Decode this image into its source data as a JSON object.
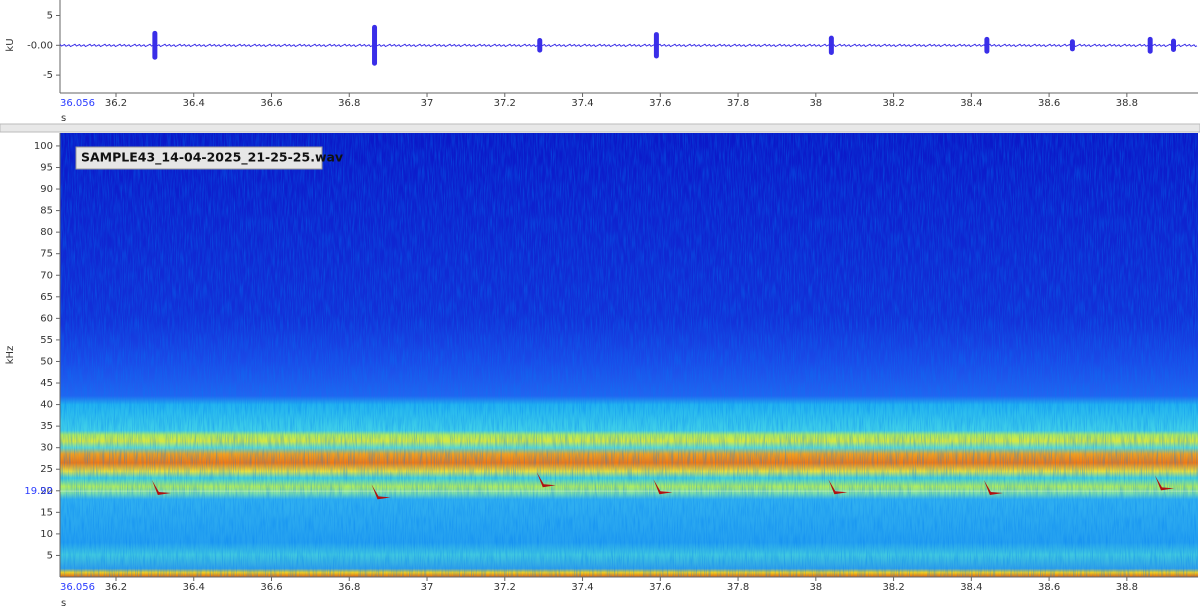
{
  "chart_data": [
    {
      "type": "waveform",
      "y_label": "kU",
      "x_label": "s",
      "xlim": [
        36.056,
        38.983
      ],
      "ylim": [
        -8,
        7.6
      ],
      "xticks": [
        36.2,
        36.4,
        36.6,
        36.8,
        37,
        37.2,
        37.4,
        37.6,
        37.8,
        38,
        38.2,
        38.4,
        38.6,
        38.8
      ],
      "yticks": [
        5,
        {
          "value": 0,
          "label": "-0.00"
        },
        -5
      ],
      "cursor_x": 36.056,
      "color": "#3a2ee8",
      "x": [
        36.3,
        36.865,
        37.29,
        37.59,
        38.04,
        38.44,
        38.66,
        38.86,
        38.92
      ],
      "values": [
        2.0,
        3.0,
        0.8,
        1.8,
        1.2,
        1.0,
        0.6,
        1.0,
        0.7
      ]
    },
    {
      "type": "spectrogram",
      "y_label": "kHz",
      "x_label": "s",
      "annotation": "SAMPLE43_14-04-2025_21-25-25.wav",
      "xlim": [
        36.056,
        38.983
      ],
      "ylim": [
        0,
        103
      ],
      "xticks": [
        36.2,
        36.4,
        36.6,
        36.8,
        37,
        37.2,
        37.4,
        37.6,
        37.8,
        38,
        38.2,
        38.4,
        38.6,
        38.8
      ],
      "yticks": [
        5,
        10,
        15,
        20,
        25,
        30,
        35,
        40,
        45,
        50,
        55,
        60,
        65,
        70,
        75,
        80,
        85,
        90,
        95,
        100
      ],
      "cursor_x": 36.056,
      "cursor_y": 19.92,
      "color": "#b01010",
      "x": [
        36.3,
        36.865,
        37.29,
        37.59,
        38.04,
        38.44,
        38.88
      ],
      "values": [
        20.4,
        19.4,
        22.2,
        20.6,
        20.6,
        20.4,
        21.5
      ]
    }
  ]
}
